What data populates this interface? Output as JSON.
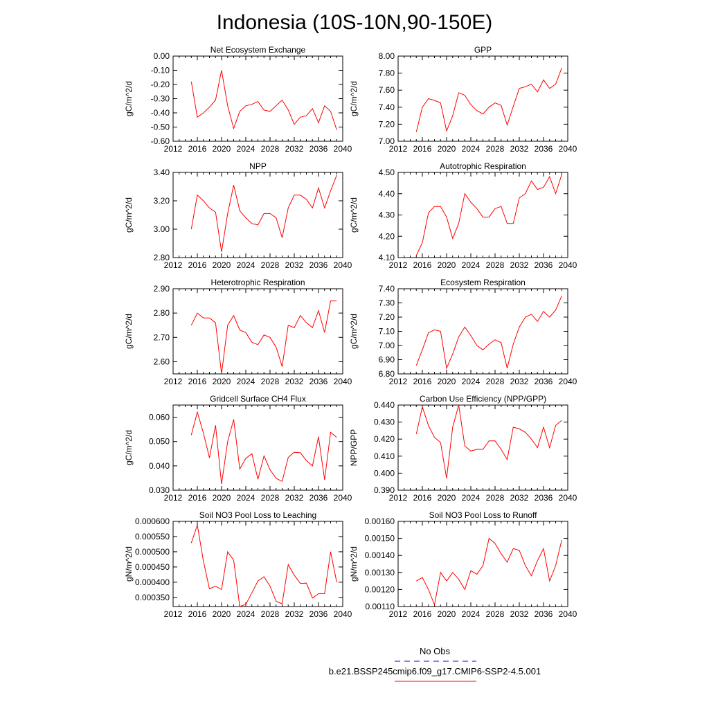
{
  "figure": {
    "title": "Indonesia (10S-10N,90-150E)",
    "legend": [
      {
        "label": "No Obs",
        "color": "#0000ff",
        "dash": "dashed"
      },
      {
        "label": "b.e21.BSSP245cmip6.f09_g17.CMIP6-SSP2-4.5.001",
        "color": "#ff0000",
        "dash": "solid"
      }
    ],
    "line_color": "#ff0000"
  },
  "chart_data": [
    {
      "type": "line",
      "title": "Net Ecosystem Exchange",
      "ylabel": "gC/m^2/d",
      "xlim": [
        2012,
        2040
      ],
      "xticks": [
        2012,
        2016,
        2020,
        2024,
        2028,
        2032,
        2036,
        2040
      ],
      "ylim": [
        -0.6,
        0.0
      ],
      "yticks": [
        "-0.60",
        "-0.50",
        "-0.40",
        "-0.30",
        "-0.20",
        "-0.10",
        "0.00"
      ],
      "x": [
        2015,
        2016,
        2017,
        2018,
        2019,
        2020,
        2021,
        2022,
        2023,
        2024,
        2025,
        2026,
        2027,
        2028,
        2029,
        2030,
        2031,
        2032,
        2033,
        2034,
        2035,
        2036,
        2037,
        2038,
        2039
      ],
      "series": [
        {
          "name": "b.e21.BSSP245cmip6.f09_g17.CMIP6-SSP2-4.5.001",
          "values": [
            -0.18,
            -0.43,
            -0.4,
            -0.36,
            -0.31,
            -0.1,
            -0.35,
            -0.51,
            -0.39,
            -0.35,
            -0.34,
            -0.32,
            -0.38,
            -0.39,
            -0.35,
            -0.31,
            -0.38,
            -0.48,
            -0.43,
            -0.42,
            -0.37,
            -0.47,
            -0.35,
            -0.39,
            -0.52
          ]
        }
      ]
    },
    {
      "type": "line",
      "title": "GPP",
      "ylabel": "gC/m^2/d",
      "xlim": [
        2012,
        2040
      ],
      "xticks": [
        2012,
        2016,
        2020,
        2024,
        2028,
        2032,
        2036,
        2040
      ],
      "ylim": [
        7.0,
        8.0
      ],
      "yticks": [
        "7.00",
        "7.20",
        "7.40",
        "7.60",
        "7.80",
        "8.00"
      ],
      "x": [
        2015,
        2016,
        2017,
        2018,
        2019,
        2020,
        2021,
        2022,
        2023,
        2024,
        2025,
        2026,
        2027,
        2028,
        2029,
        2030,
        2031,
        2032,
        2033,
        2034,
        2035,
        2036,
        2037,
        2038,
        2039
      ],
      "series": [
        {
          "name": "b.e21.BSSP245cmip6.f09_g17.CMIP6-SSP2-4.5.001",
          "values": [
            7.11,
            7.4,
            7.5,
            7.48,
            7.45,
            7.12,
            7.3,
            7.57,
            7.54,
            7.43,
            7.36,
            7.32,
            7.4,
            7.45,
            7.42,
            7.19,
            7.41,
            7.62,
            7.64,
            7.67,
            7.58,
            7.72,
            7.62,
            7.67,
            7.86
          ]
        }
      ]
    },
    {
      "type": "line",
      "title": "NPP",
      "ylabel": "gC/m^2/d",
      "xlim": [
        2012,
        2040
      ],
      "xticks": [
        2012,
        2016,
        2020,
        2024,
        2028,
        2032,
        2036,
        2040
      ],
      "ylim": [
        2.8,
        3.4
      ],
      "yticks": [
        "2.80",
        "3.00",
        "3.20",
        "3.40"
      ],
      "x": [
        2015,
        2016,
        2017,
        2018,
        2019,
        2020,
        2021,
        2022,
        2023,
        2024,
        2025,
        2026,
        2027,
        2028,
        2029,
        2030,
        2031,
        2032,
        2033,
        2034,
        2035,
        2036,
        2037,
        2038,
        2039
      ],
      "series": [
        {
          "name": "b.e21.BSSP245cmip6.f09_g17.CMIP6-SSP2-4.5.001",
          "values": [
            3.0,
            3.24,
            3.2,
            3.15,
            3.12,
            2.84,
            3.11,
            3.31,
            3.13,
            3.08,
            3.04,
            3.03,
            3.11,
            3.11,
            3.08,
            2.94,
            3.15,
            3.24,
            3.24,
            3.21,
            3.15,
            3.29,
            3.15,
            3.27,
            3.38
          ]
        }
      ]
    },
    {
      "type": "line",
      "title": "Autotrophic Respiration",
      "ylabel": "gC/m^2/d",
      "xlim": [
        2012,
        2040
      ],
      "xticks": [
        2012,
        2016,
        2020,
        2024,
        2028,
        2032,
        2036,
        2040
      ],
      "ylim": [
        4.1,
        4.5
      ],
      "yticks": [
        "4.10",
        "4.20",
        "4.30",
        "4.40",
        "4.50"
      ],
      "x": [
        2015,
        2016,
        2017,
        2018,
        2019,
        2020,
        2021,
        2022,
        2023,
        2024,
        2025,
        2026,
        2027,
        2028,
        2029,
        2030,
        2031,
        2032,
        2033,
        2034,
        2035,
        2036,
        2037,
        2038,
        2039
      ],
      "series": [
        {
          "name": "b.e21.BSSP245cmip6.f09_g17.CMIP6-SSP2-4.5.001",
          "values": [
            4.11,
            4.17,
            4.31,
            4.34,
            4.34,
            4.29,
            4.19,
            4.26,
            4.4,
            4.36,
            4.33,
            4.29,
            4.29,
            4.33,
            4.34,
            4.26,
            4.26,
            4.38,
            4.4,
            4.46,
            4.42,
            4.43,
            4.48,
            4.4,
            4.49
          ]
        }
      ]
    },
    {
      "type": "line",
      "title": "Heterotrophic Respiration",
      "ylabel": "gC/m^2/d",
      "xlim": [
        2012,
        2040
      ],
      "xticks": [
        2012,
        2016,
        2020,
        2024,
        2028,
        2032,
        2036,
        2040
      ],
      "ylim": [
        2.55,
        2.9
      ],
      "yticks": [
        "2.60",
        "2.70",
        "2.80",
        "2.90"
      ],
      "x": [
        2015,
        2016,
        2017,
        2018,
        2019,
        2020,
        2021,
        2022,
        2023,
        2024,
        2025,
        2026,
        2027,
        2028,
        2029,
        2030,
        2031,
        2032,
        2033,
        2034,
        2035,
        2036,
        2037,
        2038,
        2039
      ],
      "series": [
        {
          "name": "b.e21.BSSP245cmip6.f09_g17.CMIP6-SSP2-4.5.001",
          "values": [
            2.75,
            2.8,
            2.78,
            2.78,
            2.76,
            2.55,
            2.75,
            2.79,
            2.73,
            2.72,
            2.68,
            2.67,
            2.71,
            2.7,
            2.66,
            2.58,
            2.75,
            2.74,
            2.79,
            2.76,
            2.74,
            2.81,
            2.72,
            2.85,
            2.85
          ]
        }
      ]
    },
    {
      "type": "line",
      "title": "Ecosystem Respiration",
      "ylabel": "gC/m^2/d",
      "xlim": [
        2012,
        2040
      ],
      "xticks": [
        2012,
        2016,
        2020,
        2024,
        2028,
        2032,
        2036,
        2040
      ],
      "ylim": [
        6.8,
        7.4
      ],
      "yticks": [
        "6.80",
        "6.90",
        "7.00",
        "7.10",
        "7.20",
        "7.30",
        "7.40"
      ],
      "x": [
        2015,
        2016,
        2017,
        2018,
        2019,
        2020,
        2021,
        2022,
        2023,
        2024,
        2025,
        2026,
        2027,
        2028,
        2029,
        2030,
        2031,
        2032,
        2033,
        2034,
        2035,
        2036,
        2037,
        2038,
        2039
      ],
      "series": [
        {
          "name": "b.e21.BSSP245cmip6.f09_g17.CMIP6-SSP2-4.5.001",
          "values": [
            6.86,
            6.97,
            7.09,
            7.11,
            7.1,
            6.84,
            6.94,
            7.06,
            7.13,
            7.07,
            7.0,
            6.97,
            7.01,
            7.04,
            7.02,
            6.84,
            7.01,
            7.13,
            7.2,
            7.22,
            7.17,
            7.24,
            7.2,
            7.25,
            7.35
          ]
        }
      ]
    },
    {
      "type": "line",
      "title": "Gridcell Surface CH4 Flux",
      "ylabel": "gC/m^2/d",
      "xlim": [
        2012,
        2040
      ],
      "xticks": [
        2012,
        2016,
        2020,
        2024,
        2028,
        2032,
        2036,
        2040
      ],
      "ylim": [
        0.03,
        0.065
      ],
      "yticks": [
        "0.030",
        "0.040",
        "0.050",
        "0.060"
      ],
      "x": [
        2015,
        2016,
        2017,
        2018,
        2019,
        2020,
        2021,
        2022,
        2023,
        2024,
        2025,
        2026,
        2027,
        2028,
        2029,
        2030,
        2031,
        2032,
        2033,
        2034,
        2035,
        2036,
        2037,
        2038,
        2039
      ],
      "series": [
        {
          "name": "b.e21.BSSP245cmip6.f09_g17.CMIP6-SSP2-4.5.001",
          "values": [
            0.0527,
            0.0621,
            0.0535,
            0.0433,
            0.0567,
            0.0325,
            0.05,
            0.0591,
            0.0387,
            0.0431,
            0.045,
            0.0345,
            0.0441,
            0.0384,
            0.0349,
            0.0336,
            0.0435,
            0.0456,
            0.0454,
            0.0422,
            0.04,
            0.052,
            0.0343,
            0.0538,
            0.0517
          ]
        }
      ]
    },
    {
      "type": "line",
      "title": "Carbon Use Efficiency (NPP/GPP)",
      "ylabel": "NPP/GPP",
      "xlim": [
        2012,
        2040
      ],
      "xticks": [
        2012,
        2016,
        2020,
        2024,
        2028,
        2032,
        2036,
        2040
      ],
      "ylim": [
        0.39,
        0.44
      ],
      "yticks": [
        "0.390",
        "0.400",
        "0.410",
        "0.420",
        "0.430",
        "0.440"
      ],
      "x": [
        2015,
        2016,
        2017,
        2018,
        2019,
        2020,
        2021,
        2022,
        2023,
        2024,
        2025,
        2026,
        2027,
        2028,
        2029,
        2030,
        2031,
        2032,
        2033,
        2034,
        2035,
        2036,
        2037,
        2038,
        2039
      ],
      "series": [
        {
          "name": "b.e21.BSSP245cmip6.f09_g17.CMIP6-SSP2-4.5.001",
          "values": [
            0.423,
            0.439,
            0.428,
            0.421,
            0.418,
            0.397,
            0.427,
            0.44,
            0.416,
            0.413,
            0.414,
            0.414,
            0.419,
            0.419,
            0.414,
            0.408,
            0.427,
            0.426,
            0.424,
            0.42,
            0.415,
            0.427,
            0.415,
            0.428,
            0.431
          ]
        }
      ]
    },
    {
      "type": "line",
      "title": "Soil NO3 Pool Loss to Leaching",
      "ylabel": "gN/m^2/d",
      "xlim": [
        2012,
        2040
      ],
      "xticks": [
        2012,
        2016,
        2020,
        2024,
        2028,
        2032,
        2036,
        2040
      ],
      "ylim": [
        0.00032,
        0.0006
      ],
      "yticks": [
        "0.000350",
        "0.000400",
        "0.000450",
        "0.000500",
        "0.000550",
        "0.000600"
      ],
      "x": [
        2015,
        2016,
        2017,
        2018,
        2019,
        2020,
        2021,
        2022,
        2023,
        2024,
        2025,
        2026,
        2027,
        2028,
        2029,
        2030,
        2031,
        2032,
        2033,
        2034,
        2035,
        2036,
        2037,
        2038,
        2039
      ],
      "series": [
        {
          "name": "b.e21.BSSP245cmip6.f09_g17.CMIP6-SSP2-4.5.001",
          "values": [
            0.000529,
            0.000588,
            0.000469,
            0.000378,
            0.000387,
            0.000376,
            0.0005,
            0.000472,
            0.00032,
            0.000327,
            0.000365,
            0.000404,
            0.000418,
            0.000387,
            0.000337,
            0.000329,
            0.000458,
            0.000423,
            0.000396,
            0.000397,
            0.000348,
            0.000362,
            0.000362,
            0.0005,
            0.0004
          ]
        }
      ]
    },
    {
      "type": "line",
      "title": "Soil NO3 Pool Loss to Runoff",
      "ylabel": "gN/m^2/d",
      "xlim": [
        2012,
        2040
      ],
      "xticks": [
        2012,
        2016,
        2020,
        2024,
        2028,
        2032,
        2036,
        2040
      ],
      "ylim": [
        0.0011,
        0.0016
      ],
      "yticks": [
        "0.00110",
        "0.00120",
        "0.00130",
        "0.00140",
        "0.00150",
        "0.00160"
      ],
      "x": [
        2015,
        2016,
        2017,
        2018,
        2019,
        2020,
        2021,
        2022,
        2023,
        2024,
        2025,
        2026,
        2027,
        2028,
        2029,
        2030,
        2031,
        2032,
        2033,
        2034,
        2035,
        2036,
        2037,
        2038,
        2039
      ],
      "series": [
        {
          "name": "b.e21.BSSP245cmip6.f09_g17.CMIP6-SSP2-4.5.001",
          "values": [
            0.00125,
            0.00127,
            0.0012,
            0.00111,
            0.0013,
            0.00125,
            0.0013,
            0.00126,
            0.0012,
            0.00131,
            0.00129,
            0.00134,
            0.0015,
            0.00147,
            0.00141,
            0.00136,
            0.00144,
            0.00143,
            0.00134,
            0.00128,
            0.00137,
            0.00144,
            0.00125,
            0.00134,
            0.00149
          ]
        }
      ]
    }
  ]
}
